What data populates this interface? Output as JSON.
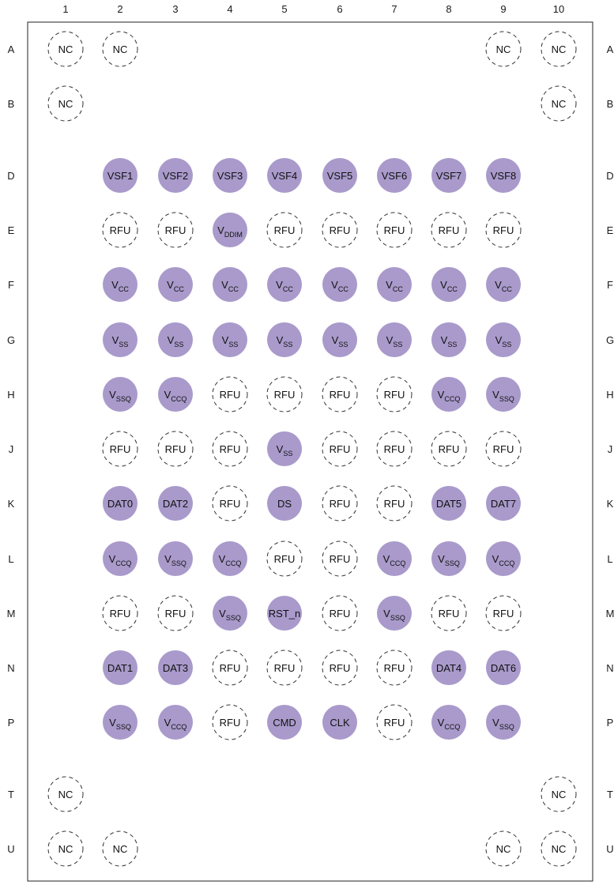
{
  "columns": [
    "1",
    "2",
    "3",
    "4",
    "5",
    "6",
    "7",
    "8",
    "9",
    "10"
  ],
  "rows": [
    "A",
    "B",
    "D",
    "E",
    "F",
    "G",
    "H",
    "J",
    "K",
    "L",
    "M",
    "N",
    "P",
    "T",
    "U"
  ],
  "colors": {
    "filled": "#a99acb",
    "outline": "#333333",
    "border": "#222222"
  },
  "legend": {
    "filled_style": "solid purple circle",
    "unused_style": "dashed outline circle"
  },
  "balls": [
    {
      "row": "A",
      "col": 1,
      "name": "NC",
      "sub": "",
      "filled": false
    },
    {
      "row": "A",
      "col": 2,
      "name": "NC",
      "sub": "",
      "filled": false
    },
    {
      "row": "A",
      "col": 9,
      "name": "NC",
      "sub": "",
      "filled": false
    },
    {
      "row": "A",
      "col": 10,
      "name": "NC",
      "sub": "",
      "filled": false
    },
    {
      "row": "B",
      "col": 1,
      "name": "NC",
      "sub": "",
      "filled": false
    },
    {
      "row": "B",
      "col": 10,
      "name": "NC",
      "sub": "",
      "filled": false
    },
    {
      "row": "D",
      "col": 2,
      "name": "VSF1",
      "sub": "",
      "filled": true
    },
    {
      "row": "D",
      "col": 3,
      "name": "VSF2",
      "sub": "",
      "filled": true
    },
    {
      "row": "D",
      "col": 4,
      "name": "VSF3",
      "sub": "",
      "filled": true
    },
    {
      "row": "D",
      "col": 5,
      "name": "VSF4",
      "sub": "",
      "filled": true
    },
    {
      "row": "D",
      "col": 6,
      "name": "VSF5",
      "sub": "",
      "filled": true
    },
    {
      "row": "D",
      "col": 7,
      "name": "VSF6",
      "sub": "",
      "filled": true
    },
    {
      "row": "D",
      "col": 8,
      "name": "VSF7",
      "sub": "",
      "filled": true
    },
    {
      "row": "D",
      "col": 9,
      "name": "VSF8",
      "sub": "",
      "filled": true
    },
    {
      "row": "E",
      "col": 2,
      "name": "RFU",
      "sub": "",
      "filled": false
    },
    {
      "row": "E",
      "col": 3,
      "name": "RFU",
      "sub": "",
      "filled": false
    },
    {
      "row": "E",
      "col": 4,
      "name": "V",
      "sub": "DDIM",
      "filled": true
    },
    {
      "row": "E",
      "col": 5,
      "name": "RFU",
      "sub": "",
      "filled": false
    },
    {
      "row": "E",
      "col": 6,
      "name": "RFU",
      "sub": "",
      "filled": false
    },
    {
      "row": "E",
      "col": 7,
      "name": "RFU",
      "sub": "",
      "filled": false
    },
    {
      "row": "E",
      "col": 8,
      "name": "RFU",
      "sub": "",
      "filled": false
    },
    {
      "row": "E",
      "col": 9,
      "name": "RFU",
      "sub": "",
      "filled": false
    },
    {
      "row": "F",
      "col": 2,
      "name": "V",
      "sub": "CC",
      "filled": true
    },
    {
      "row": "F",
      "col": 3,
      "name": "V",
      "sub": "CC",
      "filled": true
    },
    {
      "row": "F",
      "col": 4,
      "name": "V",
      "sub": "CC",
      "filled": true
    },
    {
      "row": "F",
      "col": 5,
      "name": "V",
      "sub": "CC",
      "filled": true
    },
    {
      "row": "F",
      "col": 6,
      "name": "V",
      "sub": "CC",
      "filled": true
    },
    {
      "row": "F",
      "col": 7,
      "name": "V",
      "sub": "CC",
      "filled": true
    },
    {
      "row": "F",
      "col": 8,
      "name": "V",
      "sub": "CC",
      "filled": true
    },
    {
      "row": "F",
      "col": 9,
      "name": "V",
      "sub": "CC",
      "filled": true
    },
    {
      "row": "G",
      "col": 2,
      "name": "V",
      "sub": "SS",
      "filled": true
    },
    {
      "row": "G",
      "col": 3,
      "name": "V",
      "sub": "SS",
      "filled": true
    },
    {
      "row": "G",
      "col": 4,
      "name": "V",
      "sub": "SS",
      "filled": true
    },
    {
      "row": "G",
      "col": 5,
      "name": "V",
      "sub": "SS",
      "filled": true
    },
    {
      "row": "G",
      "col": 6,
      "name": "V",
      "sub": "SS",
      "filled": true
    },
    {
      "row": "G",
      "col": 7,
      "name": "V",
      "sub": "SS",
      "filled": true
    },
    {
      "row": "G",
      "col": 8,
      "name": "V",
      "sub": "SS",
      "filled": true
    },
    {
      "row": "G",
      "col": 9,
      "name": "V",
      "sub": "SS",
      "filled": true
    },
    {
      "row": "H",
      "col": 2,
      "name": "V",
      "sub": "SSQ",
      "filled": true
    },
    {
      "row": "H",
      "col": 3,
      "name": "V",
      "sub": "CCQ",
      "filled": true
    },
    {
      "row": "H",
      "col": 4,
      "name": "RFU",
      "sub": "",
      "filled": false
    },
    {
      "row": "H",
      "col": 5,
      "name": "RFU",
      "sub": "",
      "filled": false
    },
    {
      "row": "H",
      "col": 6,
      "name": "RFU",
      "sub": "",
      "filled": false
    },
    {
      "row": "H",
      "col": 7,
      "name": "RFU",
      "sub": "",
      "filled": false
    },
    {
      "row": "H",
      "col": 8,
      "name": "V",
      "sub": "CCQ",
      "filled": true
    },
    {
      "row": "H",
      "col": 9,
      "name": "V",
      "sub": "SSQ",
      "filled": true
    },
    {
      "row": "J",
      "col": 2,
      "name": "RFU",
      "sub": "",
      "filled": false
    },
    {
      "row": "J",
      "col": 3,
      "name": "RFU",
      "sub": "",
      "filled": false
    },
    {
      "row": "J",
      "col": 4,
      "name": "RFU",
      "sub": "",
      "filled": false
    },
    {
      "row": "J",
      "col": 5,
      "name": "V",
      "sub": "SS",
      "filled": true
    },
    {
      "row": "J",
      "col": 6,
      "name": "RFU",
      "sub": "",
      "filled": false
    },
    {
      "row": "J",
      "col": 7,
      "name": "RFU",
      "sub": "",
      "filled": false
    },
    {
      "row": "J",
      "col": 8,
      "name": "RFU",
      "sub": "",
      "filled": false
    },
    {
      "row": "J",
      "col": 9,
      "name": "RFU",
      "sub": "",
      "filled": false
    },
    {
      "row": "K",
      "col": 2,
      "name": "DAT0",
      "sub": "",
      "filled": true
    },
    {
      "row": "K",
      "col": 3,
      "name": "DAT2",
      "sub": "",
      "filled": true
    },
    {
      "row": "K",
      "col": 4,
      "name": "RFU",
      "sub": "",
      "filled": false
    },
    {
      "row": "K",
      "col": 5,
      "name": "DS",
      "sub": "",
      "filled": true
    },
    {
      "row": "K",
      "col": 6,
      "name": "RFU",
      "sub": "",
      "filled": false
    },
    {
      "row": "K",
      "col": 7,
      "name": "RFU",
      "sub": "",
      "filled": false
    },
    {
      "row": "K",
      "col": 8,
      "name": "DAT5",
      "sub": "",
      "filled": true
    },
    {
      "row": "K",
      "col": 9,
      "name": "DAT7",
      "sub": "",
      "filled": true
    },
    {
      "row": "L",
      "col": 2,
      "name": "V",
      "sub": "CCQ",
      "filled": true
    },
    {
      "row": "L",
      "col": 3,
      "name": "V",
      "sub": "SSQ",
      "filled": true
    },
    {
      "row": "L",
      "col": 4,
      "name": "V",
      "sub": "CCQ",
      "filled": true
    },
    {
      "row": "L",
      "col": 5,
      "name": "RFU",
      "sub": "",
      "filled": false
    },
    {
      "row": "L",
      "col": 6,
      "name": "RFU",
      "sub": "",
      "filled": false
    },
    {
      "row": "L",
      "col": 7,
      "name": "V",
      "sub": "CCQ",
      "filled": true
    },
    {
      "row": "L",
      "col": 8,
      "name": "V",
      "sub": "SSQ",
      "filled": true
    },
    {
      "row": "L",
      "col": 9,
      "name": "V",
      "sub": "CCQ",
      "filled": true
    },
    {
      "row": "M",
      "col": 2,
      "name": "RFU",
      "sub": "",
      "filled": false
    },
    {
      "row": "M",
      "col": 3,
      "name": "RFU",
      "sub": "",
      "filled": false
    },
    {
      "row": "M",
      "col": 4,
      "name": "V",
      "sub": "SSQ",
      "filled": true
    },
    {
      "row": "M",
      "col": 5,
      "name": "RST_n",
      "sub": "",
      "filled": true
    },
    {
      "row": "M",
      "col": 6,
      "name": "RFU",
      "sub": "",
      "filled": false
    },
    {
      "row": "M",
      "col": 7,
      "name": "V",
      "sub": "SSQ",
      "filled": true
    },
    {
      "row": "M",
      "col": 8,
      "name": "RFU",
      "sub": "",
      "filled": false
    },
    {
      "row": "M",
      "col": 9,
      "name": "RFU",
      "sub": "",
      "filled": false
    },
    {
      "row": "N",
      "col": 2,
      "name": "DAT1",
      "sub": "",
      "filled": true
    },
    {
      "row": "N",
      "col": 3,
      "name": "DAT3",
      "sub": "",
      "filled": true
    },
    {
      "row": "N",
      "col": 4,
      "name": "RFU",
      "sub": "",
      "filled": false
    },
    {
      "row": "N",
      "col": 5,
      "name": "RFU",
      "sub": "",
      "filled": false
    },
    {
      "row": "N",
      "col": 6,
      "name": "RFU",
      "sub": "",
      "filled": false
    },
    {
      "row": "N",
      "col": 7,
      "name": "RFU",
      "sub": "",
      "filled": false
    },
    {
      "row": "N",
      "col": 8,
      "name": "DAT4",
      "sub": "",
      "filled": true
    },
    {
      "row": "N",
      "col": 9,
      "name": "DAT6",
      "sub": "",
      "filled": true
    },
    {
      "row": "P",
      "col": 2,
      "name": "V",
      "sub": "SSQ",
      "filled": true
    },
    {
      "row": "P",
      "col": 3,
      "name": "V",
      "sub": "CCQ",
      "filled": true
    },
    {
      "row": "P",
      "col": 4,
      "name": "RFU",
      "sub": "",
      "filled": false
    },
    {
      "row": "P",
      "col": 5,
      "name": "CMD",
      "sub": "",
      "filled": true
    },
    {
      "row": "P",
      "col": 6,
      "name": "CLK",
      "sub": "",
      "filled": true
    },
    {
      "row": "P",
      "col": 7,
      "name": "RFU",
      "sub": "",
      "filled": false
    },
    {
      "row": "P",
      "col": 8,
      "name": "V",
      "sub": "CCQ",
      "filled": true
    },
    {
      "row": "P",
      "col": 9,
      "name": "V",
      "sub": "SSQ",
      "filled": true
    },
    {
      "row": "T",
      "col": 1,
      "name": "NC",
      "sub": "",
      "filled": false
    },
    {
      "row": "T",
      "col": 10,
      "name": "NC",
      "sub": "",
      "filled": false
    },
    {
      "row": "U",
      "col": 1,
      "name": "NC",
      "sub": "",
      "filled": false
    },
    {
      "row": "U",
      "col": 2,
      "name": "NC",
      "sub": "",
      "filled": false
    },
    {
      "row": "U",
      "col": 9,
      "name": "NC",
      "sub": "",
      "filled": false
    },
    {
      "row": "U",
      "col": 10,
      "name": "NC",
      "sub": "",
      "filled": false
    }
  ]
}
